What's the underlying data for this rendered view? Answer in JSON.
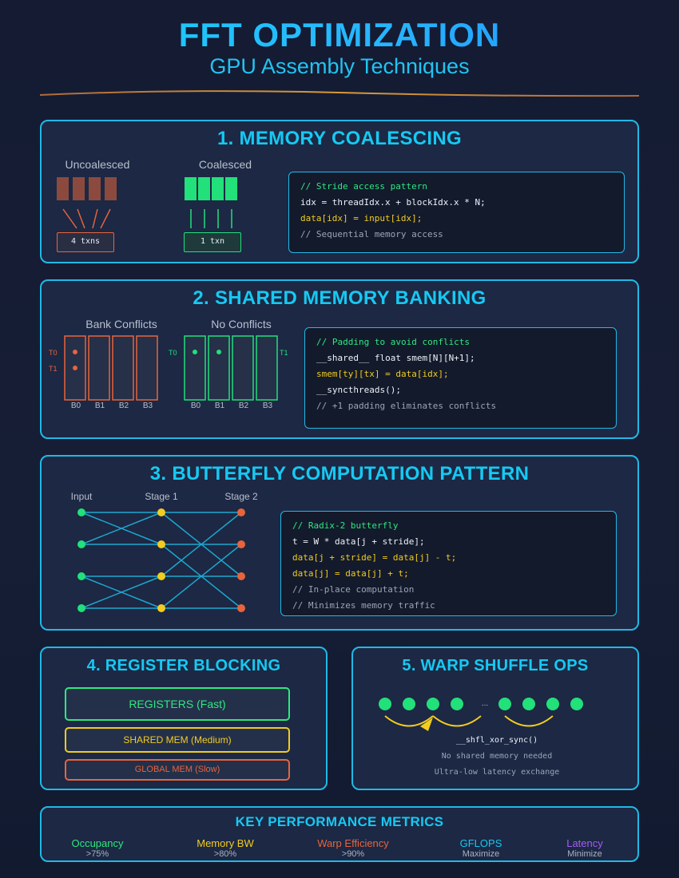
{
  "header": {
    "title": "FFT OPTIMIZATION",
    "subtitle": "GPU Assembly Techniques"
  },
  "colors": {
    "accent": "#16c9f2",
    "green": "#2ee87e",
    "yellow": "#f2cc1f",
    "orange": "#e8643c",
    "purple": "#a55cf2",
    "panel_bg": "#1c2844",
    "page_bg": "#141b33"
  },
  "coalescing": {
    "title": "1. MEMORY COALESCING",
    "uncoalesced_label": "Uncoalesced",
    "coalesced_label": "Coalesced",
    "uncoalesced_txns": "4 txns",
    "coalesced_txns": "1 txn",
    "code": [
      {
        "text": "// Stride access pattern",
        "style": "c-green"
      },
      {
        "text": "idx = threadIdx.x + blockIdx.x * N;",
        "style": "c-white"
      },
      {
        "text": "data[idx] = input[idx];",
        "style": "c-yellow"
      },
      {
        "text": "// Sequential memory access",
        "style": "c-gray"
      }
    ]
  },
  "banking": {
    "title": "2. SHARED MEMORY BANKING",
    "conflicts_label": "Bank Conflicts",
    "no_conflicts_label": "No Conflicts",
    "thread_t0": "T0",
    "thread_t1": "T1",
    "banks": [
      "B0",
      "B1",
      "B2",
      "B3"
    ],
    "code": [
      {
        "text": "// Padding to avoid conflicts",
        "style": "c-green"
      },
      {
        "text": "__shared__ float smem[N][N+1];",
        "style": "c-white"
      },
      {
        "text": "smem[ty][tx] = data[idx];",
        "style": "c-yellow"
      },
      {
        "text": "__syncthreads();",
        "style": "c-white"
      },
      {
        "text": "// +1 padding eliminates conflicts",
        "style": "c-gray"
      }
    ]
  },
  "butterfly": {
    "title": "3. BUTTERFLY COMPUTATION PATTERN",
    "stage_labels": [
      "Input",
      "Stage 1",
      "Stage 2"
    ],
    "code": [
      {
        "text": "// Radix-2 butterfly",
        "style": "c-green"
      },
      {
        "text": "t = W * data[j + stride];",
        "style": "c-white"
      },
      {
        "text": "data[j + stride] = data[j] - t;",
        "style": "c-yellow"
      },
      {
        "text": "data[j] = data[j] + t;",
        "style": "c-yellow"
      },
      {
        "text": "// In-place computation",
        "style": "c-gray"
      },
      {
        "text": "// Minimizes memory traffic",
        "style": "c-gray"
      }
    ]
  },
  "registers": {
    "title": "4. REGISTER BLOCKING",
    "tiers": [
      {
        "label": "REGISTERS (Fast)",
        "color": "#2ee87e"
      },
      {
        "label": "SHARED MEM (Medium)",
        "color": "#f2cc1f"
      },
      {
        "label": "GLOBAL MEM (Slow)",
        "color": "#e8643c"
      }
    ]
  },
  "shuffle": {
    "title": "5. WARP SHUFFLE OPS",
    "ellipsis": "...",
    "func": "__shfl_xor_sync()",
    "note1": "No shared memory needed",
    "note2": "Ultra-low latency exchange"
  },
  "metrics": {
    "title": "KEY PERFORMANCE METRICS",
    "items": [
      {
        "name": "Occupancy",
        "value": ">75%",
        "color": "#2ee87e"
      },
      {
        "name": "Memory BW",
        "value": ">80%",
        "color": "#f2cc1f"
      },
      {
        "name": "Warp Efficiency",
        "value": ">90%",
        "color": "#e8643c"
      },
      {
        "name": "GFLOPS",
        "value": "Maximize",
        "color": "#16c9f2"
      },
      {
        "name": "Latency",
        "value": "Minimize",
        "color": "#a55cf2"
      }
    ]
  }
}
